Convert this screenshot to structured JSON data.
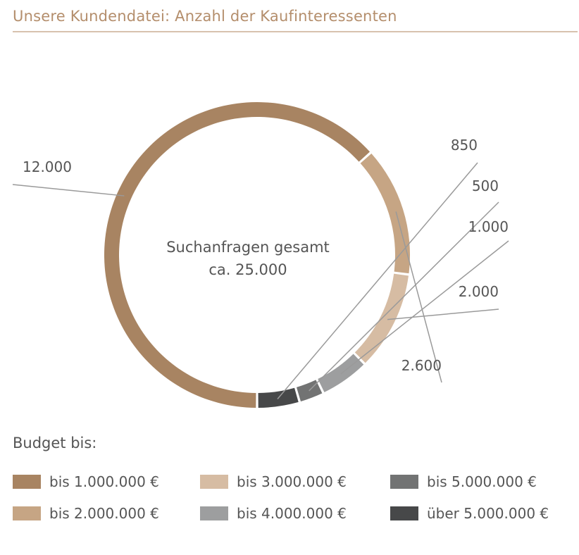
{
  "header": {
    "title": "Unsere Kundendatei: Anzahl der Kaufinteressenten"
  },
  "chart_data": {
    "type": "pie",
    "variant": "donut",
    "center_text": [
      "Suchanfragen gesamt",
      "ca. 25.000"
    ],
    "legend_title": "Budget bis:",
    "categories": [
      "bis 1.000.000 €",
      "bis 2.000.000 €",
      "bis 3.000.000 €",
      "bis 4.000.000 €",
      "bis 5.000.000 €",
      "über 5.000.000 €"
    ],
    "values": [
      12000,
      2600,
      2000,
      1000,
      500,
      850
    ],
    "value_labels": [
      "12.000",
      "2.600",
      "2.000",
      "1.000",
      "500",
      "850"
    ],
    "colors": [
      "#a88462",
      "#c6a584",
      "#d6bca3",
      "#9d9e9f",
      "#727373",
      "#474849"
    ]
  },
  "legend": {
    "heading": "Budget bis:",
    "items": [
      {
        "label": "bis 1.000.000 €",
        "color": "#a88462"
      },
      {
        "label": "bis 3.000.000 €",
        "color": "#d6bca3"
      },
      {
        "label": "bis 5.000.000 €",
        "color": "#727373"
      },
      {
        "label": "bis 2.000.000 €",
        "color": "#c6a584"
      },
      {
        "label": "bis 4.000.000 €",
        "color": "#9d9e9f"
      },
      {
        "label": "über 5.000.000 €",
        "color": "#474849"
      }
    ]
  }
}
